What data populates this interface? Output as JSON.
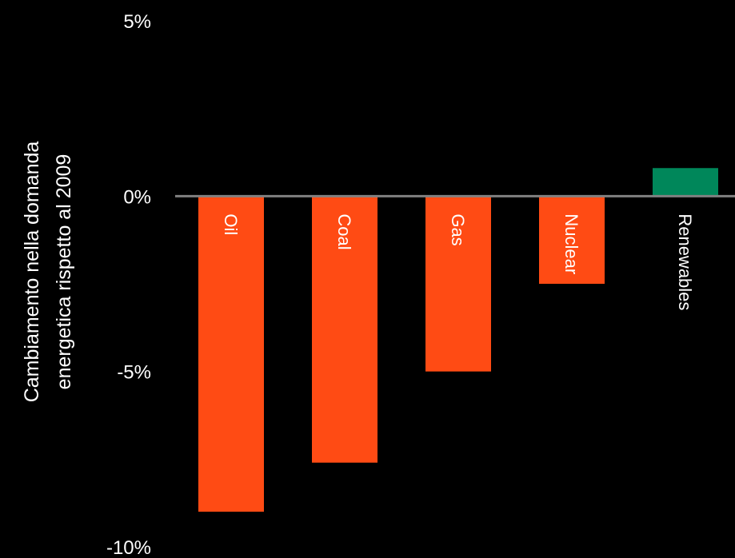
{
  "chart_data": {
    "type": "bar",
    "title": "",
    "xlabel": "",
    "ylabel_lines": [
      "Cambiamento nella domanda",
      "energetica rispetto al 2009"
    ],
    "categories": [
      "Oil",
      "Coal",
      "Gas",
      "Nuclear",
      "Renewables"
    ],
    "values": [
      -9.0,
      -7.6,
      -5.0,
      -2.5,
      0.8
    ],
    "ylim": [
      -10,
      5
    ],
    "yticks": [
      5,
      0,
      -5,
      -10
    ],
    "ytick_labels": [
      "5%",
      "0%",
      "-5%",
      "-10%"
    ],
    "grid": false,
    "legend": "none",
    "colors": {
      "negative": "#ff4b14",
      "positive": "#00875a",
      "zero_line": "#808080",
      "text": "#ffffff",
      "background": "#000000"
    }
  }
}
